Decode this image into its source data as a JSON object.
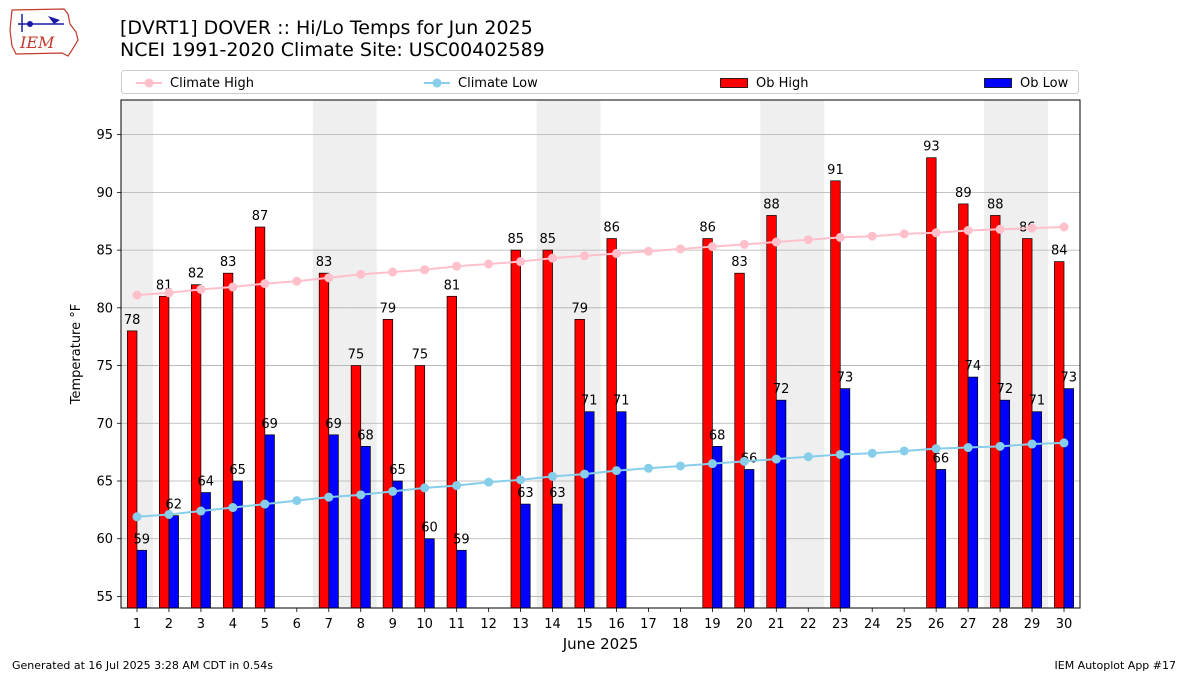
{
  "title_line1": "[DVRT1] DOVER :: Hi/Lo Temps for Jun 2025",
  "title_line2": "NCEI 1991-2020 Climate Site: USC00402589",
  "logo_text": "IEM",
  "footer_left": "Generated at 16 Jul 2025 3:28 AM CDT in 0.54s",
  "footer_right": "IEM Autoplot App #17",
  "colors": {
    "ob_high": "#ff0000",
    "ob_low": "#0000ff",
    "climate_high": "#ffc0cb",
    "climate_low": "#87ceeb",
    "weekend_shade": "#efefef",
    "grid": "#b0b0b0"
  },
  "chart_data": {
    "type": "bar",
    "xlabel": "June 2025",
    "ylabel": "Temperature °F",
    "ylim": [
      54,
      98
    ],
    "yticks": [
      55,
      60,
      65,
      70,
      75,
      80,
      85,
      90,
      95
    ],
    "grid": "horizontal",
    "legend_position": "top",
    "categories": [
      "1",
      "2",
      "3",
      "4",
      "5",
      "6",
      "7",
      "8",
      "9",
      "10",
      "11",
      "12",
      "13",
      "14",
      "15",
      "16",
      "17",
      "18",
      "19",
      "20",
      "21",
      "22",
      "23",
      "24",
      "25",
      "26",
      "27",
      "28",
      "29",
      "30"
    ],
    "shaded_days": [
      1,
      7,
      8,
      14,
      15,
      21,
      22,
      28,
      29
    ],
    "series": [
      {
        "name": "Ob High",
        "kind": "bar",
        "color": "#ff0000",
        "values": [
          78,
          81,
          82,
          83,
          87,
          null,
          83,
          75,
          79,
          75,
          81,
          null,
          85,
          85,
          79,
          86,
          null,
          null,
          86,
          83,
          88,
          null,
          91,
          null,
          null,
          93,
          89,
          88,
          86,
          84
        ]
      },
      {
        "name": "Ob Low",
        "kind": "bar",
        "color": "#0000ff",
        "values": [
          59,
          62,
          64,
          65,
          69,
          null,
          69,
          68,
          65,
          60,
          59,
          null,
          63,
          63,
          71,
          71,
          null,
          null,
          68,
          66,
          72,
          null,
          73,
          null,
          null,
          66,
          74,
          72,
          71,
          73
        ]
      },
      {
        "name": "Climate High",
        "kind": "line",
        "color": "#ffc0cb",
        "values": [
          81.1,
          81.3,
          81.6,
          81.8,
          82.1,
          82.3,
          82.6,
          82.9,
          83.1,
          83.3,
          83.6,
          83.8,
          84.0,
          84.3,
          84.5,
          84.7,
          84.9,
          85.1,
          85.3,
          85.5,
          85.7,
          85.9,
          86.1,
          86.2,
          86.4,
          86.5,
          86.7,
          86.8,
          86.9,
          87.0
        ]
      },
      {
        "name": "Climate Low",
        "kind": "line",
        "color": "#87ceeb",
        "values": [
          61.9,
          62.1,
          62.4,
          62.7,
          63.0,
          63.3,
          63.6,
          63.8,
          64.1,
          64.4,
          64.6,
          64.9,
          65.1,
          65.4,
          65.6,
          65.9,
          66.1,
          66.3,
          66.5,
          66.7,
          66.9,
          67.1,
          67.3,
          67.4,
          67.6,
          67.8,
          67.9,
          68.0,
          68.2,
          68.3
        ]
      }
    ]
  }
}
